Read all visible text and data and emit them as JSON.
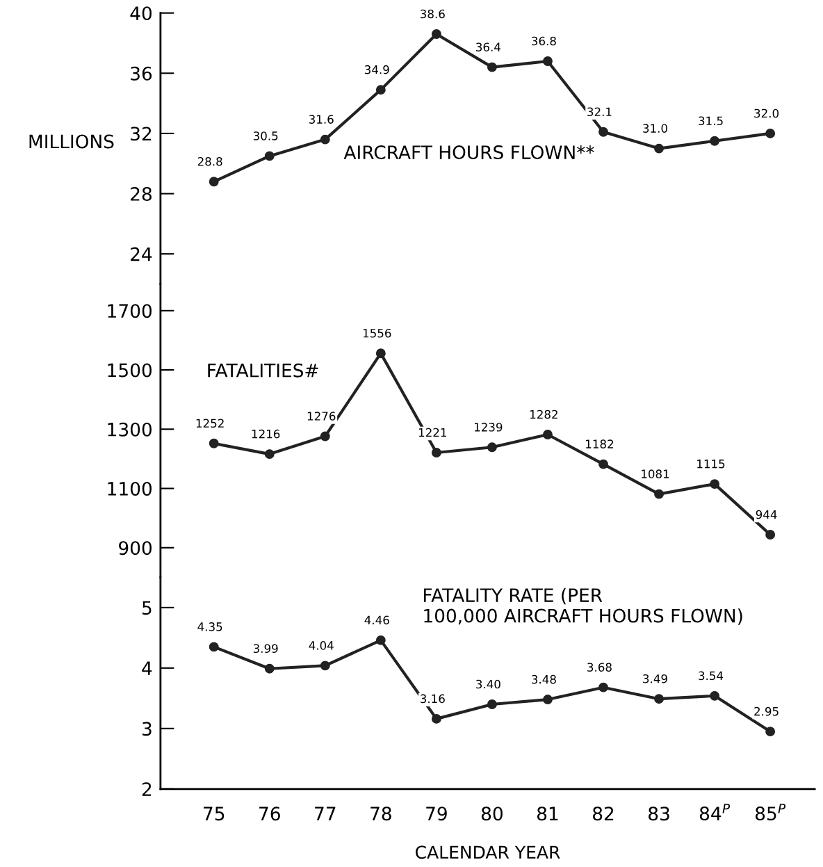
{
  "chart_data": [
    {
      "type": "line",
      "ylabel": "MILLIONS",
      "annotations": [
        "AIRCRAFT HOURS FLOWN**"
      ],
      "series": [
        {
          "color": "#222222",
          "values": [
            28.8,
            30.5,
            31.6,
            34.9,
            38.6,
            36.4,
            36.8,
            32.1,
            31.0,
            31.5,
            32.0
          ],
          "value_labels": [
            "28.8",
            "30.5",
            "31.6",
            "34.9",
            "38.6",
            "36.4",
            "36.8",
            "32.1",
            "31.0",
            "31.5",
            "32.0"
          ]
        }
      ],
      "marker": "circle",
      "ylim": [
        22,
        40
      ],
      "yticks": [
        24,
        28,
        32,
        36,
        40
      ],
      "tick_labels": "y"
    },
    {
      "type": "line",
      "annotations": [
        "FATALITIES#"
      ],
      "series": [
        {
          "color": "#222222",
          "values": [
            1252,
            1216,
            1276,
            1556,
            1221,
            1239,
            1282,
            1182,
            1081,
            1115,
            944
          ],
          "value_labels": [
            "1252",
            "1216",
            "1276",
            "1556",
            "1221",
            "1239",
            "1282",
            "1182",
            "1081",
            "1115",
            "944"
          ]
        }
      ],
      "marker": "circle",
      "ylim": [
        800,
        1790
      ],
      "yticks": [
        900,
        1100,
        1300,
        1500,
        1700
      ],
      "tick_labels": "y"
    },
    {
      "type": "line",
      "xlabel": "CALENDAR YEAR",
      "annotations": [
        "FATALITY RATE (PER\n100,000 AIRCRAFT HOURS FLOWN)"
      ],
      "categories": [
        "75",
        "76",
        "77",
        "78",
        "79",
        "80",
        "81",
        "82",
        "83",
        "84$^{P}$",
        "85$^{P}$"
      ],
      "series": [
        {
          "color": "#222222",
          "values": [
            4.35,
            3.99,
            4.04,
            4.46,
            3.16,
            3.4,
            3.48,
            3.68,
            3.49,
            3.54,
            2.95
          ],
          "value_labels": [
            "4.35",
            "3.99",
            "4.04",
            "4.46",
            "3.16",
            "3.40",
            "3.48",
            "3.68",
            "3.49",
            "3.54",
            "2.95"
          ]
        }
      ],
      "marker": "circle",
      "ylim": [
        2,
        5.5
      ],
      "yticks": [
        2,
        3,
        4,
        5
      ]
    }
  ]
}
